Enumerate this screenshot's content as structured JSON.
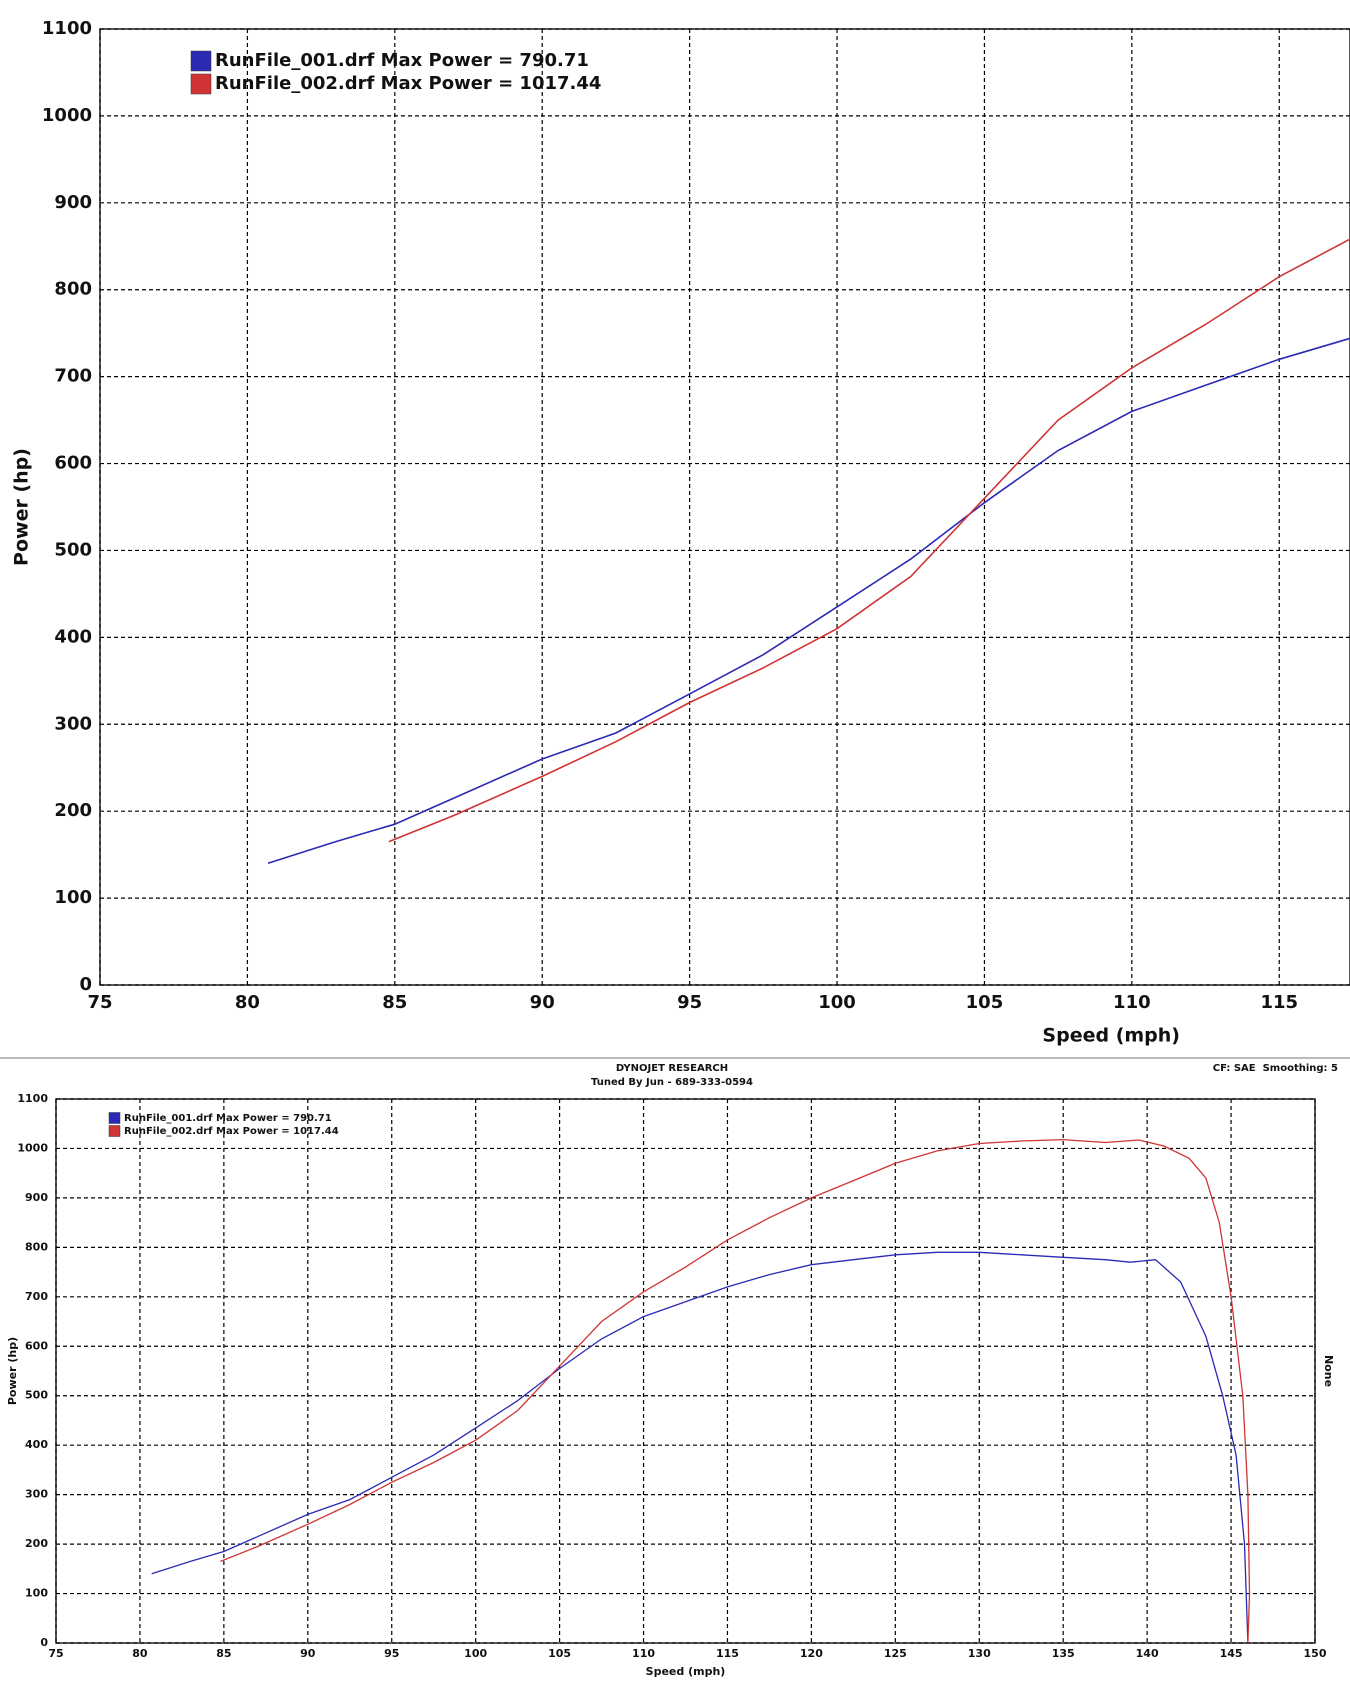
{
  "chart_data": [
    {
      "type": "line",
      "x_label": "Speed (mph)",
      "y_label": "Power (hp)",
      "xlim": [
        75,
        117.4
      ],
      "ylim": [
        0,
        1100
      ],
      "xticks": [
        75,
        80,
        85,
        90,
        95,
        100,
        105,
        110,
        115
      ],
      "yticks": [
        0,
        100,
        200,
        300,
        400,
        500,
        600,
        700,
        800,
        900,
        1000,
        1100
      ],
      "grid": true,
      "legend": "top-left",
      "series": [
        {
          "name": "RunFile_001.drf Max Power = 790.71",
          "color": "#2a2ab4",
          "x": [
            80.7,
            83,
            85,
            87,
            90,
            92.5,
            95,
            97.5,
            100,
            102.5,
            105,
            107.5,
            110,
            112.5,
            115,
            117.5
          ],
          "values": [
            140,
            165,
            185,
            215,
            260,
            290,
            335,
            380,
            435,
            490,
            555,
            615,
            660,
            690,
            720,
            745
          ]
        },
        {
          "name": "RunFile_002.drf Max Power = 1017.44",
          "color": "#d03434",
          "x": [
            84.8,
            87,
            90,
            92.5,
            95,
            97.5,
            100,
            102.5,
            105,
            107.5,
            110,
            112.5,
            115,
            117.5
          ],
          "values": [
            165,
            195,
            240,
            280,
            325,
            365,
            410,
            470,
            560,
            650,
            710,
            760,
            815,
            860
          ]
        }
      ]
    },
    {
      "type": "line",
      "title": "DYNOJET RESEARCH",
      "subtitle": "Tuned By Jun - 689-333-0594",
      "note": "CF: SAE  Smoothing: 5",
      "y2_label": "None",
      "x_label": "Speed (mph)",
      "y_label": "Power (hp)",
      "xlim": [
        75,
        150
      ],
      "ylim": [
        0,
        1100
      ],
      "xticks": [
        75,
        80,
        85,
        90,
        95,
        100,
        105,
        110,
        115,
        120,
        125,
        130,
        135,
        140,
        145,
        150
      ],
      "yticks": [
        0,
        100,
        200,
        300,
        400,
        500,
        600,
        700,
        800,
        900,
        1000,
        1100
      ],
      "grid": true,
      "legend": "top-left",
      "series": [
        {
          "name": "RunFile_001.drf Max Power = 790.71",
          "color": "#2a2ab4",
          "x": [
            80.7,
            83,
            85,
            87,
            90,
            92.5,
            95,
            97.5,
            100,
            102.5,
            105,
            107.5,
            110,
            112.5,
            115,
            117.5,
            120,
            122.5,
            125,
            127.5,
            130,
            132.5,
            135,
            137.5,
            139,
            140.5,
            142,
            143.5,
            144.5,
            145.3,
            145.8,
            146
          ],
          "values": [
            140,
            165,
            185,
            215,
            260,
            290,
            335,
            380,
            435,
            490,
            555,
            615,
            660,
            690,
            720,
            745,
            765,
            775,
            785,
            790,
            790,
            785,
            780,
            775,
            770,
            775,
            730,
            620,
            500,
            380,
            200,
            0
          ]
        },
        {
          "name": "RunFile_002.drf Max Power = 1017.44",
          "color": "#d03434",
          "x": [
            84.8,
            87,
            90,
            92.5,
            95,
            97.5,
            100,
            102.5,
            105,
            107.5,
            110,
            112.5,
            115,
            117.5,
            120,
            122.5,
            125,
            127.5,
            130,
            132.5,
            135,
            137.5,
            139.5,
            141,
            142.5,
            143.5,
            144.3,
            145,
            145.7,
            146,
            146.1,
            146
          ],
          "values": [
            165,
            195,
            240,
            280,
            325,
            365,
            410,
            470,
            560,
            650,
            710,
            760,
            815,
            860,
            900,
            935,
            970,
            995,
            1010,
            1015,
            1018,
            1012,
            1017,
            1005,
            980,
            940,
            850,
            700,
            500,
            300,
            100,
            0
          ]
        }
      ]
    }
  ]
}
